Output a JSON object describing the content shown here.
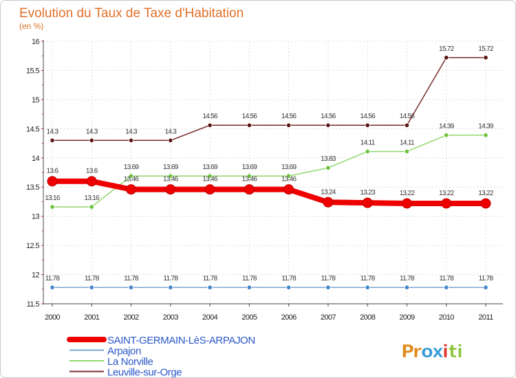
{
  "chart_data": {
    "type": "line",
    "title": "Evolution du Taux de Taxe d'Habitation",
    "ylabel": "(en %)",
    "xlabel": "",
    "ylim": [
      11.5,
      16
    ],
    "yticks": [
      "11.5",
      "12",
      "12.5",
      "13",
      "13.5",
      "14",
      "14.5",
      "15",
      "15.5",
      "16"
    ],
    "categories": [
      "2000",
      "2001",
      "2002",
      "2003",
      "2004",
      "2005",
      "2006",
      "2007",
      "2008",
      "2009",
      "2010",
      "2011"
    ],
    "series": [
      {
        "name": "Leuville-sur-Orge",
        "color": "#7b2a2a",
        "marker": "#5a1414",
        "values": [
          14.3,
          14.3,
          14.3,
          14.3,
          14.56,
          14.56,
          14.56,
          14.56,
          14.56,
          14.56,
          15.72,
          15.72
        ],
        "labels": [
          "14.3",
          "14.3",
          "14.3",
          "14.3",
          "14.56",
          "14.56",
          "14.56",
          "14.56",
          "14.56",
          "14.56",
          "15.72",
          "15.72"
        ]
      },
      {
        "name": "La Norville",
        "color": "#8fd86a",
        "marker": "#6cc23a",
        "values": [
          13.16,
          13.16,
          13.69,
          13.69,
          13.69,
          13.69,
          13.69,
          13.83,
          14.11,
          14.11,
          14.39,
          14.39
        ],
        "labels": [
          "13.16",
          "13.16",
          "13.69",
          "13.69",
          "13.69",
          "13.69",
          "13.69",
          "13.83",
          "14.11",
          "14.11",
          "14.39",
          "14.39"
        ]
      },
      {
        "name": "SAINT-GERMAIN-LèS-ARPAJON",
        "color": "#ee0000",
        "marker": "#ee0000",
        "values": [
          13.6,
          13.6,
          13.46,
          13.46,
          13.46,
          13.46,
          13.46,
          13.24,
          13.23,
          13.22,
          13.22,
          13.22
        ],
        "labels": [
          "13.6",
          "13.6",
          "13.46",
          "13.46",
          "13.46",
          "13.46",
          "13.46",
          "13.24",
          "13.23",
          "13.22",
          "13.22",
          "13.22"
        ]
      },
      {
        "name": "Arpajon",
        "color": "#7aa6cf",
        "marker": "#3f86c8",
        "values": [
          11.78,
          11.78,
          11.78,
          11.78,
          11.78,
          11.78,
          11.78,
          11.78,
          11.78,
          11.78,
          11.78,
          11.78
        ],
        "labels": [
          "11.78",
          "11.78",
          "11.78",
          "11.78",
          "11.78",
          "11.78",
          "11.78",
          "11.78",
          "11.78",
          "11.78",
          "11.78",
          "11.78"
        ]
      }
    ],
    "legend": [
      "SAINT-GERMAIN-LèS-ARPAJON",
      "Arpajon",
      "La Norville",
      "Leuville-sur-Orge"
    ],
    "legend_position": "bottom-left"
  },
  "logo": {
    "text": "Proxiti",
    "letters": [
      "P",
      "r",
      "o",
      "x",
      "i",
      "t",
      "i"
    ],
    "colors": [
      "#e08a1a",
      "#e08a1a",
      "#3a9bd6",
      "#3a9bd6",
      "#e0342a",
      "#8cc63f",
      "#8cc63f"
    ]
  }
}
